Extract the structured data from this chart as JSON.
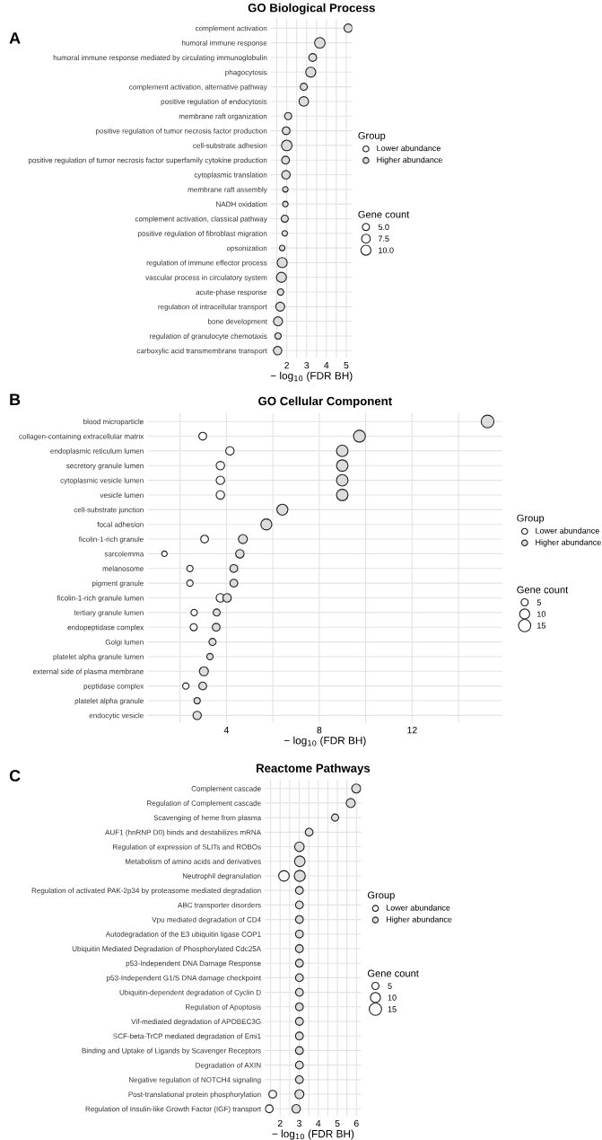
{
  "chart_data": [
    {
      "type": "bubble",
      "orientation": "horizontal",
      "title": "GO Biological Process",
      "xlabel": "− log$_{10}$ (FDR BH)",
      "annotations": [
        "A"
      ],
      "legend_title": [
        "Group",
        "Gene count"
      ],
      "legend": "right",
      "marker": "circle",
      "grid": true,
      "categories": [
        "complement activation",
        "humoral immune response",
        "humoral immune response mediated by circulating immunoglobulin",
        "phagocytosis",
        "complement activation, alternative pathway",
        "positive regulation of endocytosis",
        "membrane raft organization",
        "positive regulation of tumor necrosis factor production",
        "cell-substrate adhesion",
        "positive regulation of tumor necrosis factor superfamily cytokine production",
        "cytoplasmic translation",
        "membrane raft assembly",
        "NADH oxidation",
        "complement activation, classical pathway",
        "positive regulation of fibroblast migration",
        "opsonization",
        "regulation of immune effector process",
        "vascular process in circulatory system",
        "acute-phase response",
        "regulation of intracellular transport",
        "bone development",
        "regulation of granulocyte chemotaxis",
        "carboxylic acid transmembrane transport"
      ],
      "xlim": [
        1.2,
        5.3
      ],
      "xticks": [
        {
          "value": 1.5,
          "label": null
        },
        2,
        {
          "value": 2.5,
          "label": null
        },
        3,
        {
          "value": 3.5,
          "label": null
        },
        4,
        {
          "value": 4.5,
          "label": null
        },
        5
      ],
      "size_legend": [
        {
          "value": 5,
          "label": "5.0"
        },
        {
          "value": 7.5,
          "label": "7.5"
        },
        {
          "value": 10,
          "label": "10.0"
        }
      ],
      "series": [
        {
          "name": "Lower abundance",
          "color": "#f7f7f7",
          "values": [
            null,
            null,
            null,
            null,
            null,
            null,
            null,
            null,
            null,
            null,
            null,
            null,
            null,
            null,
            null,
            null,
            null,
            null,
            null,
            null,
            null,
            null,
            null
          ],
          "sizes": [
            null,
            null,
            null,
            null,
            null,
            null,
            null,
            null,
            null,
            null,
            null,
            null,
            null,
            null,
            null,
            null,
            null,
            null,
            null,
            null,
            null,
            null,
            null
          ]
        },
        {
          "name": "Higher abundance",
          "color": "#dcdcdc",
          "values": [
            5.1,
            3.67,
            3.31,
            3.21,
            2.86,
            2.86,
            2.07,
            1.97,
            2.0,
            1.94,
            1.96,
            1.93,
            1.93,
            1.9,
            1.9,
            1.77,
            1.77,
            1.73,
            1.69,
            1.67,
            1.56,
            1.56,
            1.54
          ],
          "sizes": [
            7,
            11,
            6,
            10,
            5,
            9,
            5,
            6,
            11,
            6,
            7,
            3,
            3,
            5,
            3,
            3,
            10,
            10,
            4,
            8,
            8,
            4,
            7
          ]
        }
      ]
    },
    {
      "type": "bubble",
      "orientation": "horizontal",
      "title": "GO Cellular Component",
      "xlabel": "− log$_{10}$ (FDR BH)",
      "annotations": [
        "B"
      ],
      "legend_title": [
        "Group",
        "Gene count"
      ],
      "legend": "right",
      "marker": "circle",
      "grid": true,
      "categories": [
        "blood microparticle",
        "collagen-containing extracellular matrix",
        "endoplasmic reticulum lumen",
        "secretory granule lumen",
        "cytoplasmic vesicle lumen",
        "vesicle lumen",
        "cell-substrate junction",
        "focal adhesion",
        "ficolin-1-rich granule",
        "sarcolemma",
        "melanosome",
        "pigment granule",
        "ficolin-1-rich granule lumen",
        "tertiary granule lumen",
        "endopeptidase complex",
        "Golgi lumen",
        "platelet alpha granule lumen",
        "external side of plasma membrane",
        "peptidase complex",
        "platelet alpha granule",
        "endocytic vesicle"
      ],
      "xlim": [
        0.6,
        15.9
      ],
      "xticks": [
        {
          "value": 2,
          "label": null
        },
        4,
        {
          "value": 6,
          "label": null
        },
        8,
        {
          "value": 10,
          "label": null
        },
        12,
        {
          "value": 14,
          "label": null
        }
      ],
      "size_legend": [
        {
          "value": 5,
          "label": "5"
        },
        {
          "value": 10,
          "label": "10"
        },
        {
          "value": 15,
          "label": "15"
        }
      ],
      "series": [
        {
          "name": "Lower abundance",
          "color": "#f7f7f7",
          "values": [
            null,
            2.98,
            4.15,
            3.74,
            3.74,
            3.74,
            null,
            null,
            3.06,
            1.33,
            2.43,
            2.43,
            3.74,
            2.61,
            2.59,
            null,
            null,
            null,
            2.25,
            null,
            null
          ],
          "sizes": [
            null,
            6,
            7,
            7,
            7,
            7,
            null,
            null,
            6,
            3,
            4,
            4,
            7,
            4,
            5,
            null,
            null,
            null,
            4,
            null,
            null
          ]
        },
        {
          "name": "Higher abundance",
          "color": "#dcdcdc",
          "values": [
            15.25,
            9.73,
            8.99,
            8.99,
            8.99,
            8.99,
            6.41,
            5.72,
            4.71,
            4.58,
            4.32,
            4.32,
            4.03,
            3.58,
            3.56,
            3.4,
            3.29,
            3.03,
            2.98,
            2.74,
            2.74
          ],
          "sizes": [
            16,
            14,
            13,
            13,
            13,
            13,
            12,
            12,
            8,
            7,
            6,
            6,
            7,
            5,
            6,
            5,
            4,
            8,
            6,
            4,
            7
          ]
        }
      ]
    },
    {
      "type": "bubble",
      "orientation": "horizontal",
      "title": "Reactome Pathways",
      "xlabel": "− log$_{10}$ (FDR BH)",
      "annotations": [
        "C"
      ],
      "legend_title": [
        "Group",
        "Gene count"
      ],
      "legend": "right",
      "marker": "circle",
      "grid": true,
      "categories": [
        "Complement cascade",
        "Regulation of Complement cascade",
        "Scavenging of heme from plasma",
        "AUF1 (hnRNP D0) binds and destabilizes mRNA",
        "Regulation of expression of SLITs and ROBOs",
        "Metabolism of amino acids and derivatives",
        "Neutrophil degranulation",
        "Regulation of activated PAK-2p34 by proteasome mediated degradation",
        "ABC transporter disorders",
        "Vpu mediated degradation of CD4",
        "Autodegradation of the E3 ubiquitin ligase COP1",
        "Ubiquitin Mediated Degradation of Phosphorylated Cdc25A",
        "p53-Independent DNA Damage Response",
        "p53-Independent G1/S DNA damage checkpoint",
        "Ubiquitin-dependent degradation of Cyclin D",
        "Regulation of Apoptosis",
        "Vif-mediated degradation of APOBEC3G",
        "SCF-beta-TrCP mediated degradation of Emi1",
        "Binding and Uptake of Ligands by Scavenger Receptors",
        "Degradation of AXIN",
        "Negative regulation of NOTCH4 signaling",
        "Post-translational protein phosphorylation",
        "Regulation of Insulin-like Growth Factor (IGF) transport"
      ],
      "xlim": [
        1.2,
        6.25
      ],
      "xticks": [
        {
          "value": 1.5,
          "label": null
        },
        2,
        {
          "value": 2.5,
          "label": null
        },
        3,
        {
          "value": 3.5,
          "label": null
        },
        4,
        {
          "value": 4.5,
          "label": null
        },
        5,
        {
          "value": 5.5,
          "label": null
        },
        6
      ],
      "size_legend": [
        {
          "value": 5,
          "label": "5"
        },
        {
          "value": 10,
          "label": "10"
        },
        {
          "value": 15,
          "label": "15"
        }
      ],
      "series": [
        {
          "name": "Lower abundance",
          "color": "#f7f7f7",
          "values": [
            null,
            null,
            null,
            null,
            null,
            null,
            2.2,
            null,
            null,
            null,
            null,
            null,
            null,
            null,
            null,
            null,
            null,
            null,
            null,
            null,
            null,
            1.61,
            1.43
          ],
          "sizes": [
            null,
            null,
            null,
            null,
            null,
            null,
            11,
            null,
            null,
            null,
            null,
            null,
            null,
            null,
            null,
            null,
            null,
            null,
            null,
            null,
            null,
            6,
            6
          ]
        },
        {
          "name": "Higher abundance",
          "color": "#dcdcdc",
          "values": [
            5.99,
            5.7,
            4.88,
            3.52,
            3.01,
            3.03,
            3.03,
            3.01,
            3.01,
            3.01,
            3.01,
            3.01,
            3.01,
            3.01,
            3.01,
            3.01,
            3.01,
            3.01,
            3.01,
            3.01,
            3.01,
            3.01,
            2.84
          ],
          "sizes": [
            8,
            8,
            5,
            6,
            9,
            11,
            12,
            6,
            6,
            6,
            6,
            6,
            6,
            6,
            6,
            6,
            6,
            6,
            6,
            6,
            6,
            8,
            7
          ]
        }
      ]
    }
  ]
}
